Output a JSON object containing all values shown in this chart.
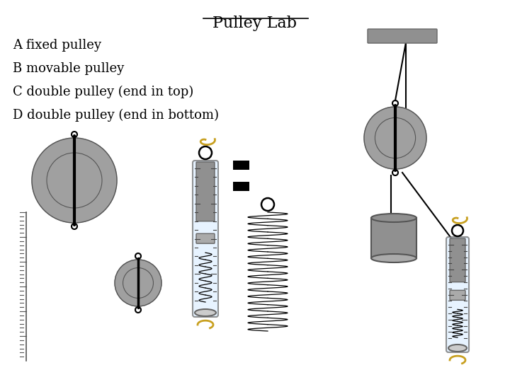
{
  "title": "Pulley Lab",
  "labels": [
    "A fixed pulley",
    "B movable pulley",
    "C double pulley (end in top)",
    "D double pulley (end in bottom)"
  ],
  "bg_color": "#ffffff",
  "gray_dark": "#808080",
  "gray_light": "#a0a0a0",
  "gray_medium": "#909090",
  "black": "#000000",
  "gold": "#c8a020"
}
